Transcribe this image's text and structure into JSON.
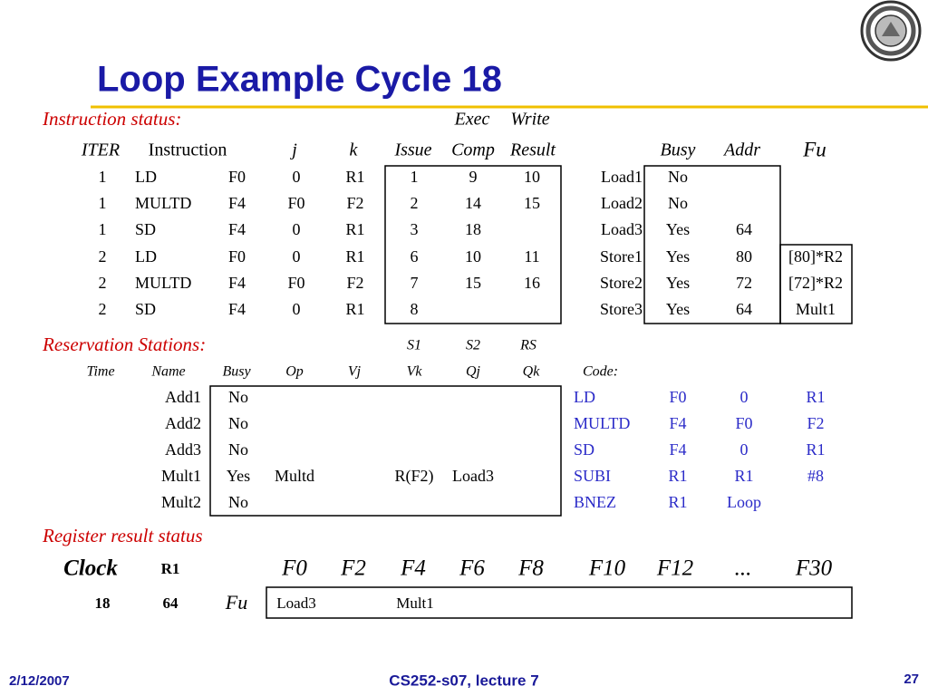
{
  "title": "Loop Example Cycle 18",
  "instruction_status": {
    "label": "Instruction status:",
    "group_headers": [
      "Exec",
      "Write"
    ],
    "headers": [
      "ITER",
      "Instruction",
      "j",
      "k",
      "Issue",
      "Comp",
      "Result"
    ],
    "rows": [
      {
        "color": "#cc0099",
        "cells": [
          "1",
          "LD",
          "F0",
          "0",
          "R1",
          "1",
          "9",
          "10"
        ]
      },
      {
        "color": "#cc0099",
        "cells": [
          "1",
          "MULTD",
          "F4",
          "F0",
          "F2",
          "2",
          "14",
          "15"
        ]
      },
      {
        "color": "#cc0099",
        "cells": [
          "1",
          "SD",
          "F4",
          "0",
          "R1",
          "3",
          "18"
        ]
      },
      {
        "color": "#009900",
        "cells": [
          "2",
          "LD",
          "F0",
          "0",
          "R1",
          "6",
          "10",
          "11"
        ]
      },
      {
        "color": "#009900",
        "cells": [
          "2",
          "MULTD",
          "F4",
          "F0",
          "F2",
          "7",
          "15",
          "16"
        ]
      },
      {
        "color": "#009900",
        "cells": [
          "2",
          "SD",
          "F4",
          "0",
          "R1",
          "8"
        ]
      }
    ]
  },
  "buffers": {
    "headers": [
      "Busy",
      "Addr",
      "Fu"
    ],
    "rows": [
      {
        "name": "Load1",
        "color": "#cc0099",
        "cells": [
          "No"
        ]
      },
      {
        "name": "Load2",
        "color": "#009900",
        "cells": [
          "No"
        ]
      },
      {
        "name": "Load3",
        "cells": [
          "Yes",
          "64"
        ]
      },
      {
        "name": "Store1",
        "color": "#cc0099",
        "cells": [
          "Yes",
          "80",
          "[80]*R2"
        ]
      },
      {
        "name": "Store2",
        "color": "#009900",
        "cells": [
          "Yes",
          "72",
          "[72]*R2"
        ]
      },
      {
        "name": "Store3",
        "cells": [
          "Yes",
          "64",
          "Mult1"
        ]
      }
    ]
  },
  "reservation_stations": {
    "label": "Reservation Stations:",
    "group_headers": [
      "S1",
      "S2",
      "RS"
    ],
    "headers": [
      "Time",
      "Name",
      "Busy",
      "Op",
      "Vj",
      "Vk",
      "Qj",
      "Qk"
    ],
    "rows": [
      {
        "cells": [
          null,
          "Add1",
          "No"
        ]
      },
      {
        "cells": [
          null,
          "Add2",
          "No"
        ]
      },
      {
        "cells": [
          null,
          "Add3",
          "No"
        ]
      },
      {
        "cells": [
          null,
          "Mult1",
          "Yes",
          "Multd",
          null,
          "R(F2)",
          "Load3"
        ]
      },
      {
        "cells": [
          null,
          "Mult2",
          "No"
        ]
      }
    ]
  },
  "code": {
    "label": "Code:",
    "rows": [
      [
        "LD",
        "F0",
        "0",
        "R1"
      ],
      [
        "MULTD",
        "F4",
        "F0",
        "F2"
      ],
      [
        "SD",
        "F4",
        "0",
        "R1"
      ],
      [
        "SUBI",
        "R1",
        "R1",
        "#8"
      ],
      [
        "BNEZ",
        "R1",
        "Loop"
      ]
    ]
  },
  "register_status": {
    "label": "Register result status",
    "headers": [
      "Clock",
      "R1",
      "F0",
      "F2",
      "F4",
      "F6",
      "F8",
      "F10",
      "F12",
      "...",
      "F30"
    ],
    "values": [
      "18",
      "64"
    ],
    "fu_label": "Fu",
    "fu": [
      "Load3",
      null,
      "Mult1"
    ]
  },
  "footer": {
    "date": "2/12/2007",
    "course": "CS252-s07, lecture 7",
    "page": "27"
  }
}
